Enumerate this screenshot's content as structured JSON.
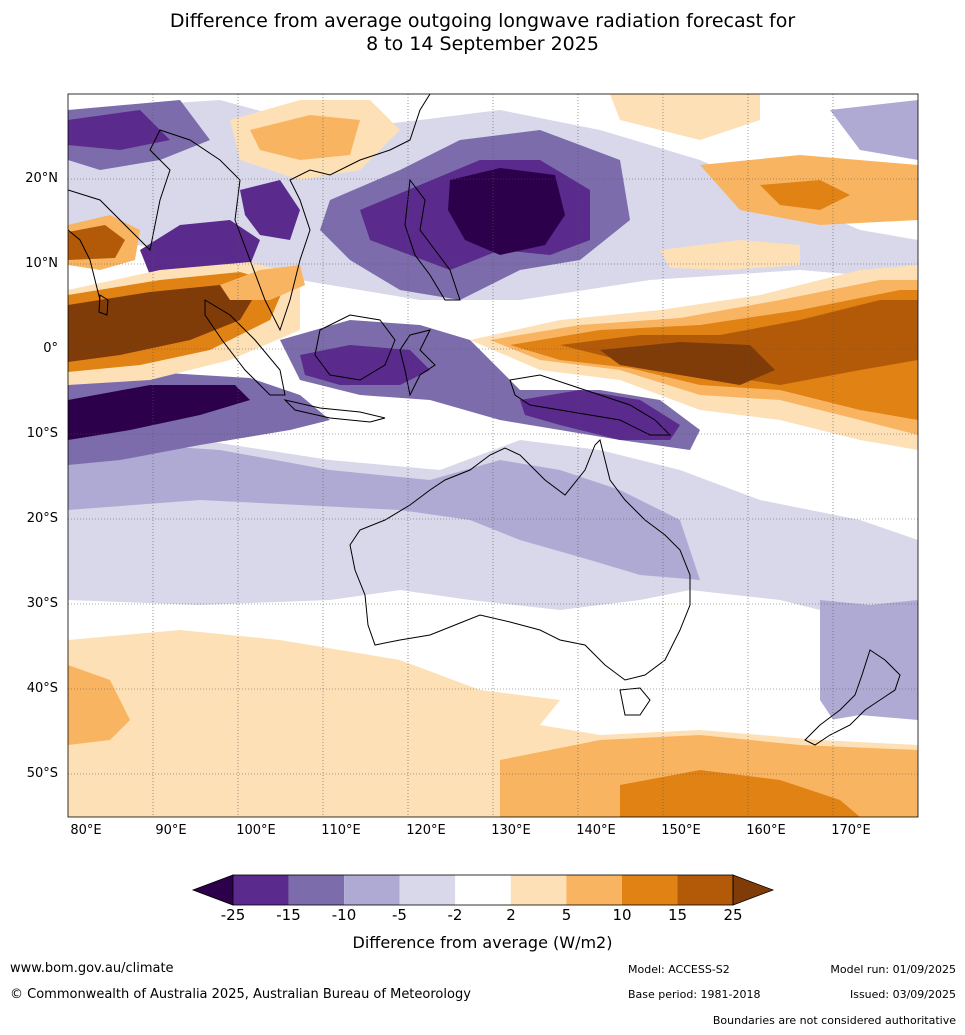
{
  "title_line1": "Difference from average outgoing longwave radiation forecast for",
  "title_line2": "8 to 14 September 2025",
  "lat_labels": [
    "20°N",
    "10°N",
    "0°",
    "10°S",
    "20°S",
    "30°S",
    "40°S",
    "50°S"
  ],
  "lon_labels": [
    "80°E",
    "90°E",
    "100°E",
    "110°E",
    "120°E",
    "130°E",
    "140°E",
    "150°E",
    "160°E",
    "170°E"
  ],
  "colorbar": {
    "ticks": [
      "-25",
      "-15",
      "-10",
      "-5",
      "-2",
      "2",
      "5",
      "10",
      "15",
      "25"
    ],
    "colors": [
      "#5a2a8c",
      "#7c6cab",
      "#aeaad3",
      "#d8d8ea",
      "#ffffff",
      "#fde0b6",
      "#f9b461",
      "#e08214",
      "#b25a07"
    ],
    "low_color": "#2d004b",
    "high_color": "#7f3b08",
    "label": "Difference from average (W/m2)"
  },
  "footer": {
    "url": "www.bom.gov.au/climate",
    "copyright": "© Commonwealth of Australia 2025, Australian Bureau of Meteorology",
    "model": "Model: ACCESS-S2",
    "base_period": "Base period: 1981-2018",
    "model_run": "Model run: 01/09/2025",
    "issued": "Issued: 03/09/2025",
    "disclaimer": "Boundaries are not considered authoritative"
  }
}
